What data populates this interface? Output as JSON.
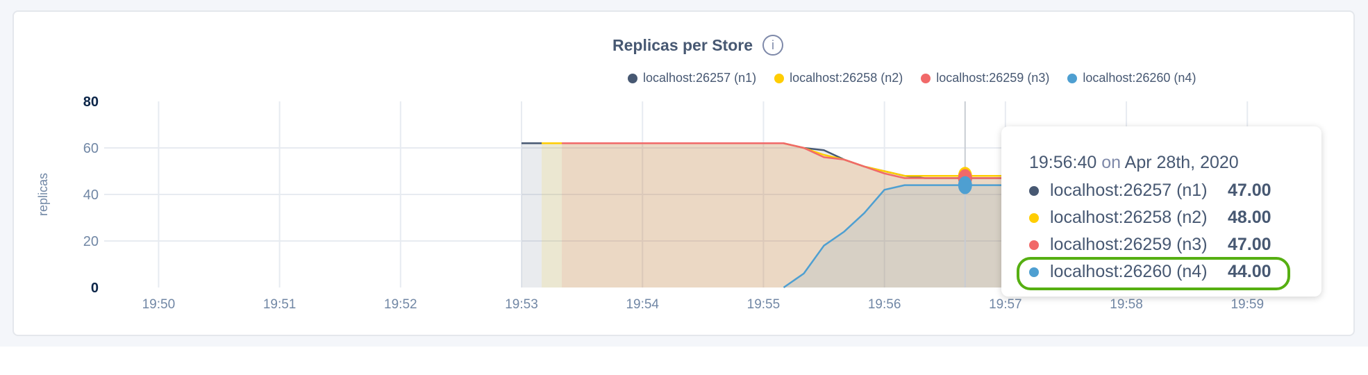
{
  "chart_data": {
    "type": "area",
    "title": "Replicas per Store",
    "ylabel": "replicas",
    "xlabel": "",
    "ylim": [
      0,
      80
    ],
    "xlim": [
      "19:49:33",
      "19:59:13"
    ],
    "yticks": [
      "0",
      "20",
      "40",
      "60",
      "80"
    ],
    "xticks": [
      "19:50",
      "19:51",
      "19:52",
      "19:53",
      "19:54",
      "19:55",
      "19:56",
      "19:57",
      "19:58",
      "19:59"
    ],
    "grid": true,
    "legend_position": "top-right",
    "series": [
      {
        "name": "localhost:26257 (n1)",
        "color": "#475872",
        "x": [
          "19:53:00",
          "19:53:10",
          "19:53:20",
          "19:54:00",
          "19:55:00",
          "19:55:10",
          "19:55:20",
          "19:55:30",
          "19:55:40",
          "19:55:50",
          "19:56:00",
          "19:56:10",
          "19:56:20",
          "19:56:30",
          "19:56:40",
          "19:56:50",
          "19:57:00"
        ],
        "values": [
          62,
          62,
          62,
          62,
          62,
          62,
          60,
          59,
          55,
          52,
          50,
          48,
          47,
          47,
          47,
          47,
          47
        ]
      },
      {
        "name": "localhost:26258 (n2)",
        "color": "#ffcd02",
        "x": [
          "19:53:10",
          "19:53:20",
          "19:54:00",
          "19:55:00",
          "19:55:10",
          "19:55:20",
          "19:55:30",
          "19:55:40",
          "19:55:50",
          "19:56:00",
          "19:56:10",
          "19:56:20",
          "19:56:30",
          "19:56:40",
          "19:56:50",
          "19:57:00"
        ],
        "values": [
          62,
          62,
          62,
          62,
          62,
          60,
          57,
          55,
          52,
          50,
          48,
          48,
          48,
          48,
          48,
          48
        ]
      },
      {
        "name": "localhost:26259 (n3)",
        "color": "#f16969",
        "x": [
          "19:53:20",
          "19:54:00",
          "19:55:00",
          "19:55:10",
          "19:55:20",
          "19:55:30",
          "19:55:40",
          "19:55:50",
          "19:56:00",
          "19:56:10",
          "19:56:20",
          "19:56:30",
          "19:56:40",
          "19:56:50",
          "19:57:00"
        ],
        "values": [
          62,
          62,
          62,
          62,
          60,
          56,
          55,
          52,
          49,
          47,
          47,
          47,
          47,
          47,
          47
        ]
      },
      {
        "name": "localhost:26260 (n4)",
        "color": "#4e9fd1",
        "x": [
          "19:55:10",
          "19:55:20",
          "19:55:30",
          "19:55:40",
          "19:55:50",
          "19:56:00",
          "19:56:10",
          "19:56:20",
          "19:56:30",
          "19:56:40",
          "19:56:50",
          "19:57:00"
        ],
        "values": [
          0,
          6,
          18,
          24,
          32,
          42,
          44,
          44,
          44,
          44,
          44,
          44
        ]
      }
    ],
    "hover": "19:56:40"
  },
  "tooltip": {
    "time": "19:56:40",
    "on": "on",
    "date": "Apr 28th, 2020",
    "rows": [
      {
        "name": "localhost:26257 (n1)",
        "value": "47.00"
      },
      {
        "name": "localhost:26258 (n2)",
        "value": "48.00"
      },
      {
        "name": "localhost:26259 (n3)",
        "value": "47.00"
      },
      {
        "name": "localhost:26260 (n4)",
        "value": "44.00",
        "highlighted": true
      }
    ]
  },
  "info_icon": "info-icon",
  "colors": {
    "highlight": "#56af12"
  }
}
